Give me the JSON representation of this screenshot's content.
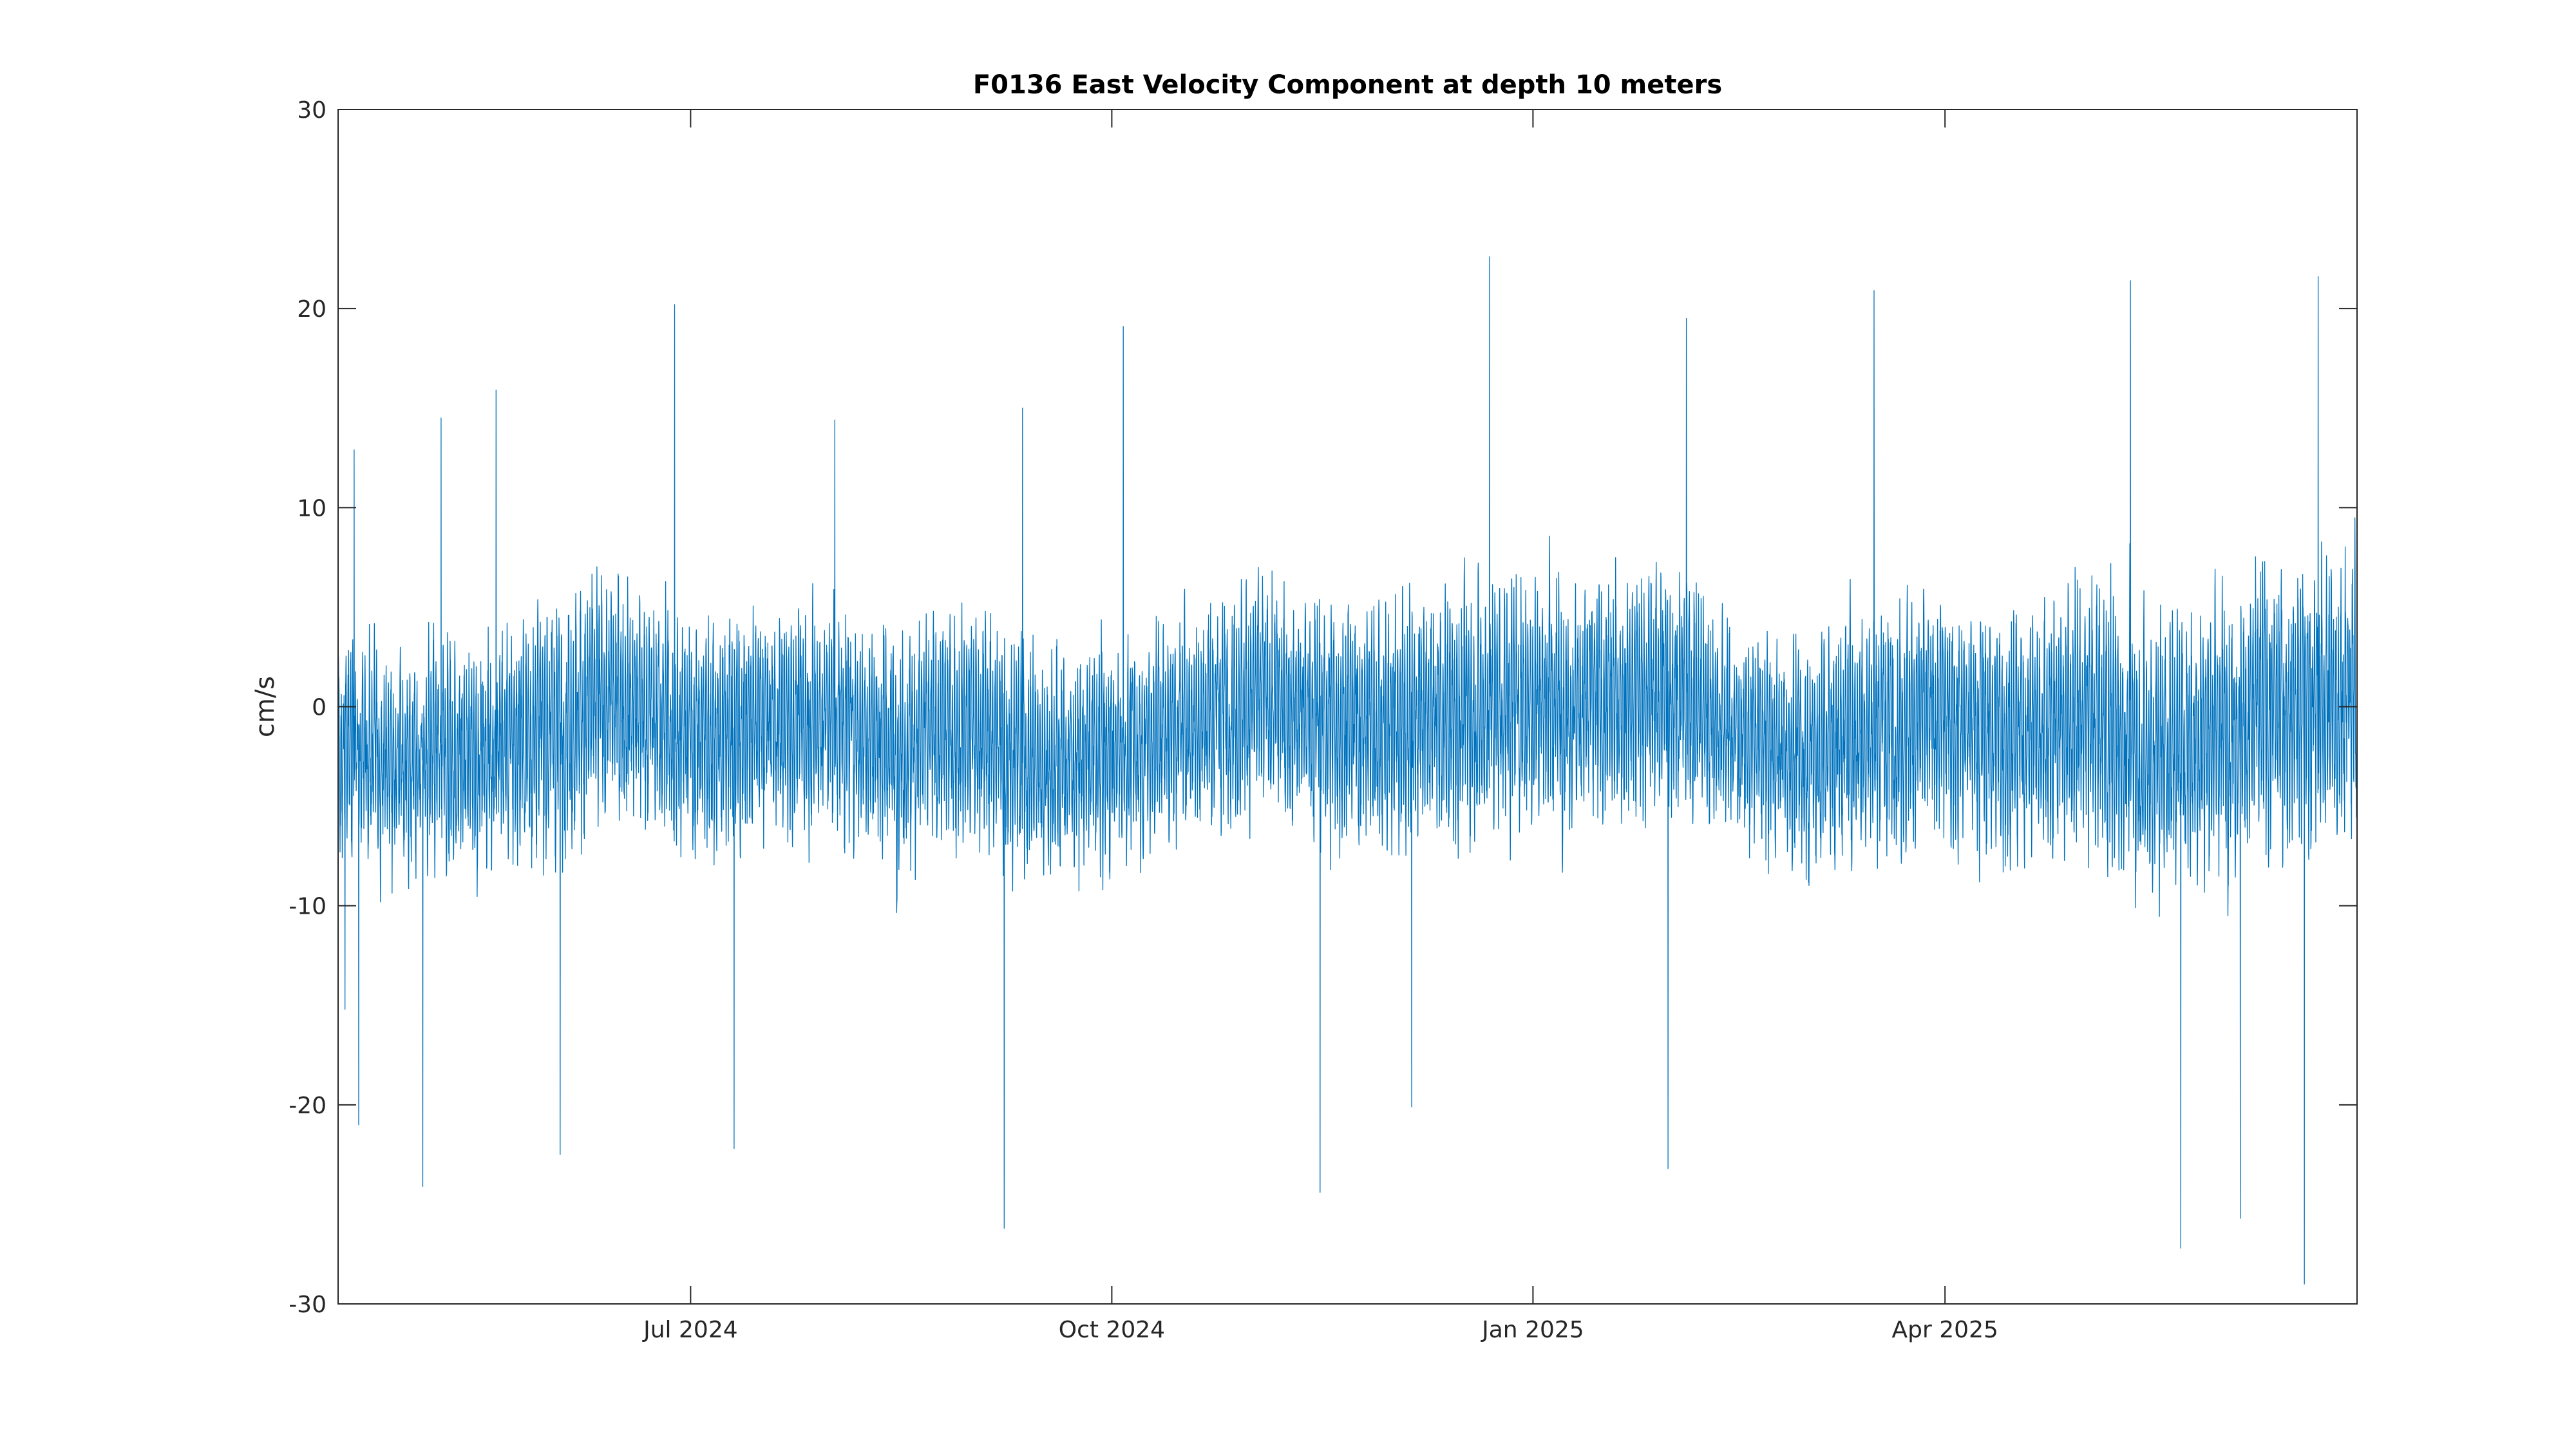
{
  "chart_data": {
    "type": "line",
    "title": "F0136 East Velocity Component at depth 10 meters",
    "xlabel": "",
    "ylabel": "cm/s",
    "xlim": [
      "2024-04-15",
      "2025-06-30"
    ],
    "ylim": [
      -30,
      30
    ],
    "yticks": [
      -30,
      -20,
      -10,
      0,
      10,
      20,
      30
    ],
    "ytick_labels": [
      "-30",
      "-20",
      "-10",
      "0",
      "10",
      "20",
      "30"
    ],
    "xticks": [
      "2024-07-01",
      "2024-10-01",
      "2025-01-01",
      "2025-04-01"
    ],
    "xtick_labels": [
      "Jul 2024",
      "Oct 2024",
      "Jan 2025",
      "Apr 2025"
    ],
    "grid": false,
    "legend": "none",
    "line_color": "#0072BD",
    "sampling": "hourly",
    "series": [
      {
        "x_start": "2024-04-15",
        "x_end": "2025-06-30",
        "anchor_x": [
          "2024-04-15",
          "2024-05-01",
          "2024-05-15",
          "2024-06-01",
          "2024-06-15",
          "2024-07-01",
          "2024-07-15",
          "2024-08-01",
          "2024-08-15",
          "2024-09-01",
          "2024-09-15",
          "2024-10-01",
          "2024-10-15",
          "2024-11-01",
          "2024-11-15",
          "2024-12-01",
          "2024-12-15",
          "2025-01-01",
          "2025-01-15",
          "2025-02-01",
          "2025-02-15",
          "2025-03-01",
          "2025-03-15",
          "2025-04-01",
          "2025-04-15",
          "2025-05-01",
          "2025-05-15",
          "2025-06-01",
          "2025-06-15",
          "2025-06-30"
        ],
        "anchor_mean": [
          -2.0,
          -3.0,
          -2.5,
          -1.0,
          0.5,
          -1.5,
          -1.0,
          -0.5,
          -2.0,
          -1.0,
          -3.0,
          -2.5,
          -1.0,
          0.5,
          -0.5,
          -1.0,
          -0.5,
          0.5,
          0.0,
          1.0,
          -1.5,
          -2.5,
          -1.0,
          -0.5,
          -1.5,
          -0.5,
          -2.5,
          -1.0,
          0.0,
          0.5
        ],
        "anchor_amplitude": [
          6.0,
          6.5,
          6.5,
          7.0,
          7.0,
          6.5,
          6.5,
          6.0,
          6.5,
          6.5,
          6.5,
          6.0,
          6.0,
          6.5,
          7.0,
          7.0,
          7.0,
          7.0,
          6.5,
          7.0,
          5.5,
          6.5,
          7.0,
          7.0,
          7.0,
          7.5,
          7.5,
          7.5,
          8.0,
          8.0
        ],
        "peaks": [
          {
            "x": "2024-04-16",
            "y": -15.2
          },
          {
            "x": "2024-04-18",
            "y": 12.9
          },
          {
            "x": "2024-04-19",
            "y": -21.0
          },
          {
            "x": "2024-05-03",
            "y": -24.1
          },
          {
            "x": "2024-05-07",
            "y": 14.5
          },
          {
            "x": "2024-05-19",
            "y": 15.9
          },
          {
            "x": "2024-06-02",
            "y": -22.5
          },
          {
            "x": "2024-06-27",
            "y": 20.2
          },
          {
            "x": "2024-07-10",
            "y": -22.2
          },
          {
            "x": "2024-08-01",
            "y": 14.4
          },
          {
            "x": "2024-09-07",
            "y": -26.2
          },
          {
            "x": "2024-09-11",
            "y": 15.0
          },
          {
            "x": "2024-10-03",
            "y": 19.1
          },
          {
            "x": "2024-11-15",
            "y": -24.4
          },
          {
            "x": "2024-12-05",
            "y": -20.1
          },
          {
            "x": "2024-12-22",
            "y": 22.6
          },
          {
            "x": "2025-01-30",
            "y": -23.2
          },
          {
            "x": "2025-02-03",
            "y": 19.5
          },
          {
            "x": "2025-03-16",
            "y": 20.9
          },
          {
            "x": "2025-05-11",
            "y": 21.4
          },
          {
            "x": "2025-05-22",
            "y": -27.2
          },
          {
            "x": "2025-06-04",
            "y": -25.7
          },
          {
            "x": "2025-06-18",
            "y": -29.0
          },
          {
            "x": "2025-06-21",
            "y": 21.6
          }
        ]
      }
    ]
  }
}
